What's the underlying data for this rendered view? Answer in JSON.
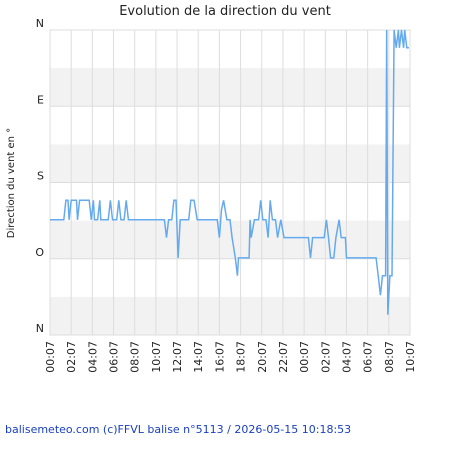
{
  "chart_data": {
    "type": "line",
    "title": "Evolution de la direction du vent",
    "y_label": "Direction du vent en °",
    "footer": "balisemeteo.com (c)FFVL balise n°5113 / 2026-05-15 10:18:53",
    "xlim": [
      0,
      34
    ],
    "ylim": [
      0,
      360
    ],
    "y_inverted": true,
    "grid": true,
    "xticks": [
      {
        "value": 0,
        "label": "00:07"
      },
      {
        "value": 2,
        "label": "02:07"
      },
      {
        "value": 4,
        "label": "04:07"
      },
      {
        "value": 6,
        "label": "06:07"
      },
      {
        "value": 8,
        "label": "08:07"
      },
      {
        "value": 10,
        "label": "10:07"
      },
      {
        "value": 12,
        "label": "12:07"
      },
      {
        "value": 14,
        "label": "14:07"
      },
      {
        "value": 16,
        "label": "16:07"
      },
      {
        "value": 18,
        "label": "18:07"
      },
      {
        "value": 20,
        "label": "20:07"
      },
      {
        "value": 22,
        "label": "22:07"
      },
      {
        "value": 24,
        "label": "00:07"
      },
      {
        "value": 26,
        "label": "02:07"
      },
      {
        "value": 28,
        "label": "04:07"
      },
      {
        "value": 30,
        "label": "06:07"
      },
      {
        "value": 32,
        "label": "08:07"
      },
      {
        "value": 34,
        "label": "10:07"
      }
    ],
    "yticks": [
      {
        "value": 0,
        "label": "N"
      },
      {
        "value": 90,
        "label": "E"
      },
      {
        "value": 180,
        "label": "S"
      },
      {
        "value": 270,
        "label": "O"
      },
      {
        "value": 360,
        "label": "N"
      }
    ],
    "series": [
      {
        "color": "#66aaee",
        "x": [
          0,
          1.3,
          1.5,
          1.7,
          1.8,
          2.0,
          2.5,
          2.6,
          2.8,
          3.7,
          3.9,
          4.1,
          4.2,
          4.5,
          4.7,
          4.8,
          5.5,
          5.7,
          5.9,
          6.3,
          6.5,
          6.7,
          7.0,
          7.2,
          7.4,
          10.8,
          11.0,
          11.2,
          11.5,
          11.7,
          11.9,
          12.1,
          12.3,
          13.1,
          13.3,
          13.6,
          13.9,
          15.8,
          16.0,
          16.2,
          16.4,
          16.7,
          17.0,
          17.2,
          17.5,
          17.7,
          17.8,
          18.8,
          18.9,
          19.0,
          19.3,
          19.7,
          19.9,
          20.1,
          20.4,
          20.6,
          20.8,
          21.0,
          21.3,
          21.5,
          21.8,
          22.1,
          24.4,
          24.6,
          24.8,
          25.9,
          26.1,
          26.3,
          26.5,
          26.8,
          27.0,
          27.3,
          27.5,
          27.9,
          28.0,
          30.8,
          31.0,
          31.2,
          31.4,
          31.7,
          31.8,
          31.9,
          32.1,
          32.3,
          32.5,
          32.7,
          32.9,
          33.0,
          33.2,
          33.4,
          33.5,
          33.7,
          33.9
        ],
        "values": [
          224,
          224,
          201,
          201,
          224,
          201,
          201,
          224,
          201,
          201,
          224,
          201,
          224,
          224,
          201,
          224,
          224,
          201,
          224,
          224,
          201,
          224,
          224,
          201,
          224,
          224,
          245,
          224,
          224,
          201,
          201,
          269,
          224,
          224,
          201,
          201,
          224,
          224,
          245,
          212,
          201,
          224,
          224,
          245,
          269,
          290,
          269,
          269,
          224,
          245,
          224,
          224,
          201,
          224,
          224,
          245,
          201,
          224,
          224,
          245,
          224,
          245,
          245,
          269,
          245,
          245,
          224,
          245,
          269,
          269,
          245,
          224,
          245,
          245,
          269,
          269,
          290,
          313,
          290,
          290,
          0,
          336,
          290,
          290,
          0,
          21,
          0,
          21,
          0,
          21,
          0,
          21,
          21
        ]
      }
    ]
  }
}
